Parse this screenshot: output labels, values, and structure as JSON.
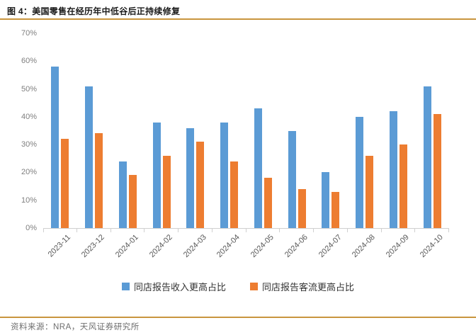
{
  "header": {
    "title": "图 4：美国零售在经历年中低谷后正持续修复"
  },
  "chart_data": {
    "type": "bar",
    "title": "",
    "xlabel": "",
    "ylabel": "",
    "categories": [
      "2023-11",
      "2023-12",
      "2024-01",
      "2024-02",
      "2024-03",
      "2024-04",
      "2024-05",
      "2024-06",
      "2024-07",
      "2024-08",
      "2024-09",
      "2024-10"
    ],
    "series": [
      {
        "name": "同店报告收入更高占比",
        "color": "#5B9BD5",
        "values": [
          58,
          51,
          24,
          38,
          36,
          38,
          43,
          35,
          20,
          40,
          42,
          51
        ]
      },
      {
        "name": "同店报告客流更高占比",
        "color": "#ED7D31",
        "values": [
          32,
          34,
          19,
          26,
          31,
          24,
          18,
          14,
          13,
          26,
          30,
          41
        ]
      }
    ],
    "ylim": [
      0,
      70
    ],
    "yticks": [
      "0%",
      "10%",
      "20%",
      "30%",
      "40%",
      "50%",
      "60%",
      "70%"
    ],
    "grid": false,
    "legend_position": "bottom"
  },
  "footer": {
    "source": "资料来源：NRA，天风证券研究所"
  },
  "colors": {
    "accent_rule": "#C9953E",
    "axis_line": "#D0D0D0",
    "series_blue": "#5B9BD5",
    "series_orange": "#ED7D31"
  }
}
